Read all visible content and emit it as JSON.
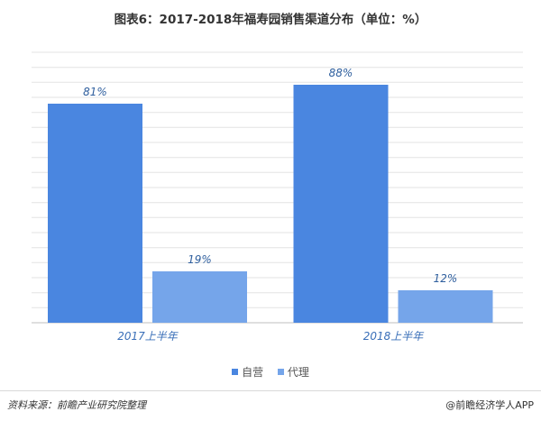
{
  "title": "图表6：2017-2018年福寿园销售渠道分布（单位：%）",
  "source": "资料来源：前瞻产业研究院整理",
  "brand": "@前瞻经济学人APP",
  "colors": {
    "self_operated": "#4a86e0",
    "agency": "#75a5ea",
    "category_label": "#3a6fb8",
    "gridline": "#e3e3e3"
  },
  "chart_data": {
    "type": "bar",
    "title": "图表6：2017-2018年福寿园销售渠道分布（单位：%）",
    "categories": [
      "2017上半年",
      "2018上半年"
    ],
    "series": [
      {
        "name": "自营",
        "values": [
          81,
          88
        ],
        "labels": [
          "81%",
          "88%"
        ]
      },
      {
        "name": "代理",
        "values": [
          19,
          12
        ],
        "labels": [
          "19%",
          "12%"
        ]
      }
    ],
    "xlabel": "",
    "ylabel": "",
    "ylim": [
      0,
      100
    ],
    "grid": true,
    "legend": "bottom-center"
  }
}
